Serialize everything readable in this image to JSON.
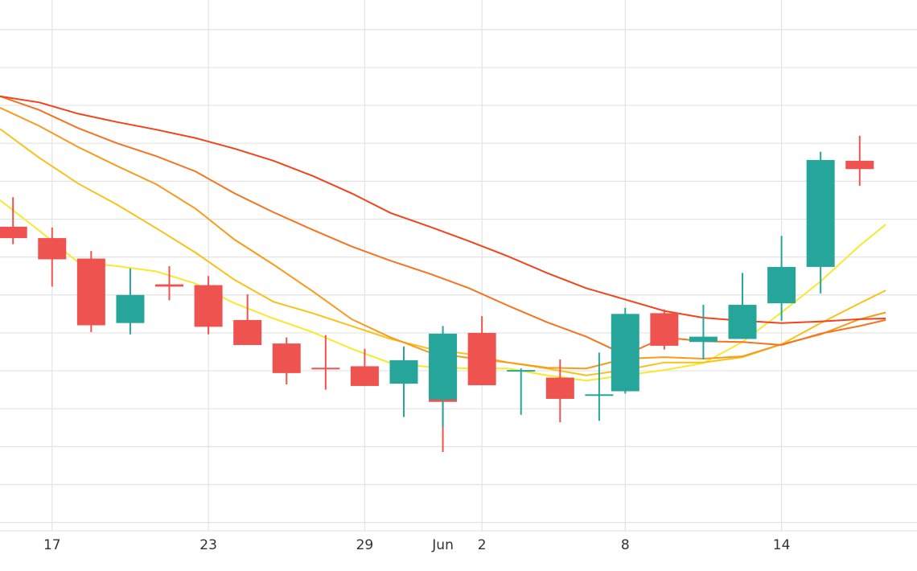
{
  "chart_data": {
    "type": "candlestick",
    "x_tick_labels": [
      {
        "day": 17,
        "label": "17"
      },
      {
        "day": 23,
        "label": "23"
      },
      {
        "day": 29,
        "label": "29"
      },
      {
        "day": 32,
        "label": "Jun"
      },
      {
        "day": 33.5,
        "label": "2"
      },
      {
        "day": 39,
        "label": "8"
      },
      {
        "day": 45,
        "label": "14"
      }
    ],
    "x_range": [
      15,
      50.2
    ],
    "y_range": [
      0,
      700
    ],
    "grid": true,
    "colors": {
      "up": "#26a69a",
      "down": "#ef5350"
    },
    "candles": [
      {
        "day": 15.5,
        "open": 401,
        "close": 386,
        "high": 440,
        "low": 378
      },
      {
        "day": 17,
        "open": 386,
        "close": 358,
        "high": 400,
        "low": 322
      },
      {
        "day": 18.5,
        "open": 359,
        "close": 271,
        "high": 369,
        "low": 262
      },
      {
        "day": 20,
        "open": 274,
        "close": 311,
        "high": 346,
        "low": 259
      },
      {
        "day": 21.5,
        "open": 325,
        "close": 322,
        "high": 349,
        "low": 304
      },
      {
        "day": 23,
        "open": 324,
        "close": 269,
        "high": 336,
        "low": 259
      },
      {
        "day": 24.5,
        "open": 278,
        "close": 245,
        "high": 312,
        "low": 245
      },
      {
        "day": 26,
        "open": 247,
        "close": 208,
        "high": 255,
        "low": 193
      },
      {
        "day": 27.5,
        "open": 215,
        "close": 214,
        "high": 258,
        "low": 186
      },
      {
        "day": 29,
        "open": 217,
        "close": 191,
        "high": 240,
        "low": 191
      },
      {
        "day": 30.5,
        "open": 194,
        "close": 225,
        "high": 243,
        "low": 150
      },
      {
        "day": 32,
        "open": 229,
        "close": 170,
        "high": 229,
        "low": 104
      },
      {
        "day": 32,
        "open": 173,
        "close": 260,
        "high": 270,
        "low": 137
      },
      {
        "day": 33.5,
        "open": 261,
        "close": 192,
        "high": 283,
        "low": 192
      },
      {
        "day": 35,
        "open": 212,
        "close": 212,
        "high": 214,
        "low": 153
      },
      {
        "day": 36.5,
        "open": 202,
        "close": 174,
        "high": 226,
        "low": 143
      },
      {
        "day": 38,
        "open": 180,
        "close": 180,
        "high": 235,
        "low": 145
      },
      {
        "day": 39,
        "open": 184,
        "close": 286,
        "high": 294,
        "low": 181
      },
      {
        "day": 40.5,
        "open": 287,
        "close": 244,
        "high": 292,
        "low": 239
      },
      {
        "day": 42,
        "open": 249,
        "close": 256,
        "high": 298,
        "low": 226
      },
      {
        "day": 43.5,
        "open": 253,
        "close": 298,
        "high": 340,
        "low": 253
      },
      {
        "day": 45,
        "open": 300,
        "close": 348,
        "high": 389,
        "low": 277
      },
      {
        "day": 46.5,
        "open": 348,
        "close": 489,
        "high": 500,
        "low": 313
      },
      {
        "day": 48,
        "open": 488,
        "close": 477,
        "high": 521,
        "low": 455
      }
    ],
    "moving_averages": [
      {
        "color": "#f7e92e",
        "points": [
          [
            15,
            436
          ],
          [
            16.5,
            396
          ],
          [
            18,
            354
          ],
          [
            19.5,
            349
          ],
          [
            21,
            342
          ],
          [
            22.5,
            326
          ],
          [
            24,
            300
          ],
          [
            25.5,
            280
          ],
          [
            27,
            262
          ],
          [
            28.5,
            240
          ],
          [
            30,
            221
          ],
          [
            31.5,
            216
          ],
          [
            33,
            214
          ],
          [
            34.5,
            214
          ],
          [
            36,
            205
          ],
          [
            37.5,
            198
          ],
          [
            39,
            205
          ],
          [
            40.5,
            212
          ],
          [
            42,
            221
          ],
          [
            43.5,
            249
          ],
          [
            45,
            288
          ],
          [
            46.5,
            329
          ],
          [
            48,
            376
          ],
          [
            49,
            404
          ]
        ]
      },
      {
        "color": "#f9c11a",
        "points": [
          [
            15,
            530
          ],
          [
            16.5,
            492
          ],
          [
            18,
            458
          ],
          [
            19.5,
            430
          ],
          [
            21,
            399
          ],
          [
            22.5,
            367
          ],
          [
            24,
            331
          ],
          [
            25.5,
            302
          ],
          [
            27,
            287
          ],
          [
            28.5,
            270
          ],
          [
            30,
            253
          ],
          [
            31.5,
            240
          ],
          [
            33,
            233
          ],
          [
            34.5,
            222
          ],
          [
            36,
            214
          ],
          [
            37.5,
            205
          ],
          [
            39,
            212
          ],
          [
            40.5,
            222
          ],
          [
            42,
            222
          ],
          [
            43.5,
            229
          ],
          [
            45,
            246
          ],
          [
            46.5,
            274
          ],
          [
            48,
            300
          ],
          [
            49,
            317
          ]
        ]
      },
      {
        "color": "#f79b1c",
        "points": [
          [
            15,
            558
          ],
          [
            16.5,
            534
          ],
          [
            18,
            506
          ],
          [
            19.5,
            481
          ],
          [
            21,
            457
          ],
          [
            22.5,
            425
          ],
          [
            24,
            384
          ],
          [
            25.5,
            351
          ],
          [
            27,
            316
          ],
          [
            28.5,
            279
          ],
          [
            30,
            255
          ],
          [
            31.5,
            235
          ],
          [
            33,
            228
          ],
          [
            34.5,
            222
          ],
          [
            36,
            215
          ],
          [
            37.5,
            214
          ],
          [
            39,
            227
          ],
          [
            40.5,
            229
          ],
          [
            42,
            227
          ],
          [
            43.5,
            230
          ],
          [
            45,
            246
          ],
          [
            46.5,
            259
          ],
          [
            48,
            279
          ],
          [
            49,
            288
          ]
        ]
      },
      {
        "color": "#f47422",
        "points": [
          [
            15,
            573
          ],
          [
            16.5,
            555
          ],
          [
            18,
            531
          ],
          [
            19.5,
            511
          ],
          [
            21,
            494
          ],
          [
            22.5,
            474
          ],
          [
            24,
            445
          ],
          [
            25.5,
            420
          ],
          [
            27,
            397
          ],
          [
            28.5,
            375
          ],
          [
            30,
            356
          ],
          [
            31.5,
            339
          ],
          [
            33,
            320
          ],
          [
            34.5,
            297
          ],
          [
            36,
            275
          ],
          [
            37.5,
            256
          ],
          [
            39,
            232
          ],
          [
            40.5,
            255
          ],
          [
            42,
            250
          ],
          [
            43.5,
            249
          ],
          [
            45,
            245
          ],
          [
            46.5,
            260
          ],
          [
            48,
            270
          ],
          [
            49,
            278
          ]
        ]
      },
      {
        "color": "#f2441b",
        "points": [
          [
            15,
            573
          ],
          [
            16.5,
            565
          ],
          [
            18,
            550
          ],
          [
            19.5,
            539
          ],
          [
            21,
            529
          ],
          [
            22.5,
            518
          ],
          [
            24,
            504
          ],
          [
            25.5,
            488
          ],
          [
            27,
            468
          ],
          [
            28.5,
            445
          ],
          [
            30,
            419
          ],
          [
            31.5,
            401
          ],
          [
            33,
            382
          ],
          [
            34.5,
            362
          ],
          [
            36,
            340
          ],
          [
            37.5,
            320
          ],
          [
            39,
            305
          ],
          [
            40.5,
            290
          ],
          [
            42,
            281
          ],
          [
            43.5,
            277
          ],
          [
            45,
            274
          ],
          [
            46.5,
            276
          ],
          [
            48,
            279
          ],
          [
            49,
            280
          ]
        ]
      }
    ]
  }
}
